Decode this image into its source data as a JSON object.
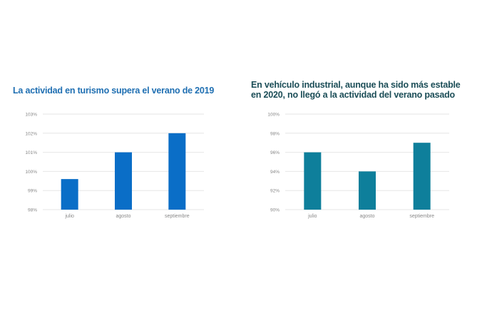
{
  "chart_data": [
    {
      "type": "bar",
      "title": "La actividad en turismo supera el verano de 2019",
      "categories": [
        "julio",
        "agosto",
        "septiembre"
      ],
      "values": [
        99.6,
        101,
        102
      ],
      "ylim": [
        98,
        103
      ],
      "yticks": [
        "98%",
        "99%",
        "100%",
        "101%",
        "102%",
        "103%"
      ],
      "grid": true,
      "color": "#0a6ec7"
    },
    {
      "type": "bar",
      "title": "En vehículo industrial, aunque ha sido más estable en 2020, no llegó a la actividad del verano pasado",
      "title_lines": [
        "En vehículo industrial, aunque ha sido más estable",
        "en 2020, no llegó a la actividad del verano pasado"
      ],
      "categories": [
        "julio",
        "agosto",
        "septiembre"
      ],
      "values": [
        96,
        94,
        97
      ],
      "ylim": [
        90,
        100
      ],
      "yticks": [
        "90%",
        "92%",
        "94%",
        "96%",
        "98%",
        "100%"
      ],
      "grid": true,
      "color": "#0e7f9b"
    }
  ]
}
